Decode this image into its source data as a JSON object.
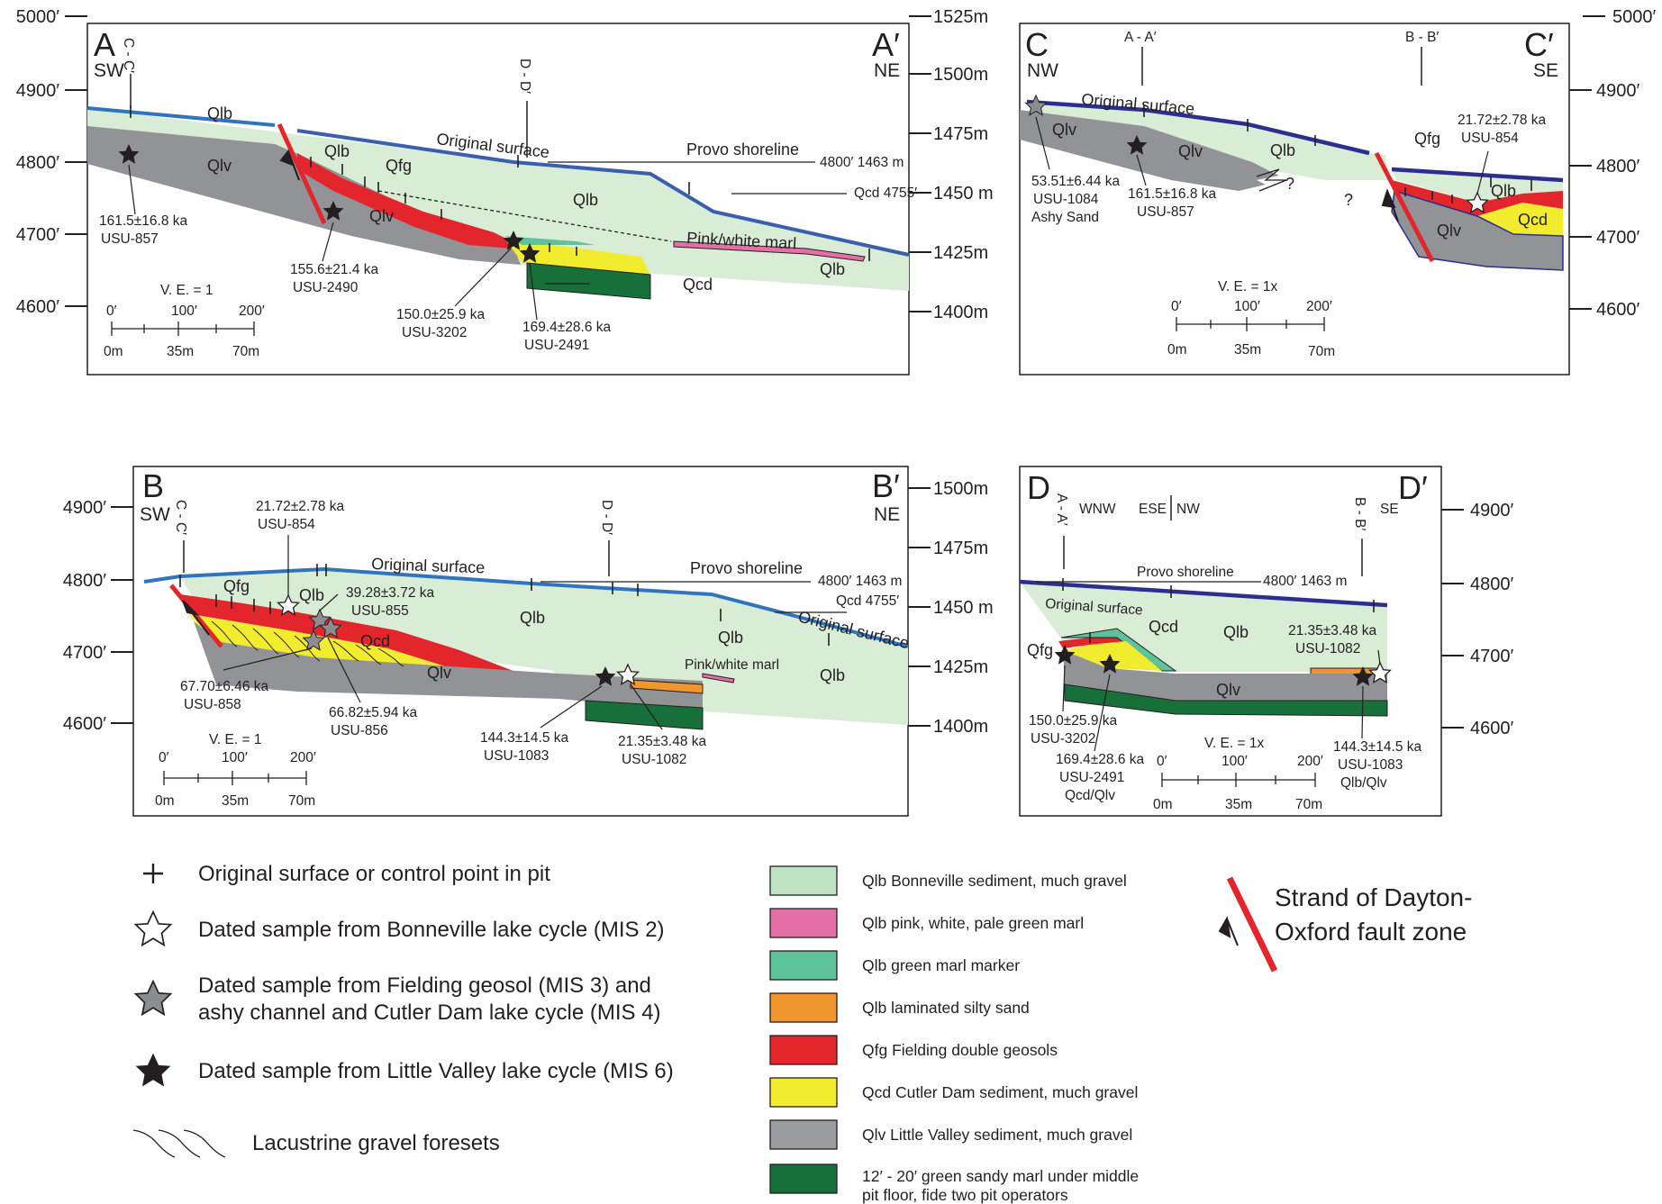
{
  "panel_A": {
    "letter": "A",
    "letter_end": "A′",
    "dir_left": "SW",
    "dir_right": "NE",
    "xref_1": "C - C′",
    "xref_2": "D - D′",
    "units": {
      "qlb_1": "Qlb",
      "qlb_2": "Qlb",
      "qlb_3": "Qlb",
      "qlb_4": "Qlb",
      "qlv_1": "Qlv",
      "qlv_2": "Qlv",
      "qfg": "Qfg",
      "qcd": "Qcd"
    },
    "original_surface": "Original surface",
    "provo_shoreline": "Provo shoreline",
    "ref_4800": "4800′ 1463 m",
    "ref_qcd": "Qcd 4755′",
    "marl": "Pink/white marl",
    "samples": [
      {
        "age": "161.5±16.8 ka",
        "id": "USU-857"
      },
      {
        "age": "155.6±21.4 ka",
        "id": "USU-2490"
      },
      {
        "age": "150.0±25.9 ka",
        "id": "USU-3202"
      },
      {
        "age": "169.4±28.6 ka",
        "id": "USU-2491"
      }
    ],
    "ve": "V. E. = 1",
    "scale_ft": [
      "0′",
      "100′",
      "200′"
    ],
    "scale_m": [
      "0m",
      "35m",
      "70m"
    ],
    "left_ticks": [
      "5000′",
      "4900′",
      "4800′",
      "4700′",
      "4600′"
    ],
    "right_ticks": [
      "1525m",
      "1500m",
      "1475m",
      "1450 m",
      "1425m",
      "1400m"
    ]
  },
  "panel_C": {
    "letter": "C",
    "letter_end": "C′",
    "dir_left": "NW",
    "dir_right": "SE",
    "xref_1": "A - A′",
    "xref_2": "B - B′",
    "units": {
      "qlv_1": "Qlv",
      "qlv_2": "Qlv",
      "qlv_3": "Qlv",
      "qlb_1": "Qlb",
      "qlb_2": "Qlb",
      "qfg": "Qfg",
      "qcd": "Qcd"
    },
    "original_surface": "Original surface",
    "question": "?",
    "samples": [
      {
        "age": "53.51±6.44 ka",
        "id": "USU-1084",
        "note": "Ashy Sand"
      },
      {
        "age": "161.5±16.8 ka",
        "id": "USU-857"
      },
      {
        "age": "21.72±2.78 ka",
        "id": "USU-854"
      }
    ],
    "ve": "V. E. = 1x",
    "scale_ft": [
      "0′",
      "100′",
      "200′"
    ],
    "scale_m": [
      "0m",
      "35m",
      "70m"
    ],
    "right_ticks": [
      "5000′",
      "4900′",
      "4800′",
      "4700′",
      "4600′"
    ]
  },
  "panel_B": {
    "letter": "B",
    "letter_end": "B′",
    "dir_left": "SW",
    "dir_right": "NE",
    "xref_1": "C - C′",
    "xref_2": "D - D′",
    "units": {
      "qfg": "Qfg",
      "qlb_1": "Qlb",
      "qlb_2": "Qlb",
      "qlb_3": "Qlb",
      "qlb_4": "Qlb",
      "qcd": "Qcd",
      "qlv": "Qlv"
    },
    "original_surface": "Original surface",
    "original_surface_2": "Original surface",
    "provo_shoreline": "Provo shoreline",
    "ref_4800": "4800′ 1463 m",
    "ref_qcd": "Qcd 4755′",
    "marl": "Pink/white marl",
    "samples": [
      {
        "age": "21.72±2.78 ka",
        "id": "USU-854"
      },
      {
        "age": "39.28±3.72 ka",
        "id": "USU-855"
      },
      {
        "age": "67.70±6.46 ka",
        "id": "USU-858"
      },
      {
        "age": "66.82±5.94 ka",
        "id": "USU-856"
      },
      {
        "age": "144.3±14.5 ka",
        "id": "USU-1083"
      },
      {
        "age": "21.35±3.48 ka",
        "id": "USU-1082"
      }
    ],
    "ve": "V. E. = 1",
    "scale_ft": [
      "0′",
      "100′",
      "200′"
    ],
    "scale_m": [
      "0m",
      "35m",
      "70m"
    ],
    "left_ticks": [
      "4900′",
      "4800′",
      "4700′",
      "4600′"
    ],
    "right_ticks": [
      "1500m",
      "1475m",
      "1450 m",
      "1425m",
      "1400m"
    ]
  },
  "panel_D": {
    "letter": "D",
    "letter_end": "D′",
    "dir_left": "WNW",
    "dir_mid_1": "ESE",
    "dir_mid_2": "NW",
    "dir_right": "SE",
    "xref_1": "A - A′",
    "xref_2": "B - B′",
    "units": {
      "qfg": "Qfg",
      "qcd": "Qcd",
      "qlb": "Qlb",
      "qlv": "Qlv"
    },
    "original_surface": "Original surface",
    "provo_shoreline": "Provo shoreline",
    "ref_4800": "4800′ 1463 m",
    "samples": [
      {
        "age": "150.0±25.9 ka",
        "id": "USU-3202"
      },
      {
        "age": "169.4±28.6 ka",
        "id": "USU-2491",
        "note": "Qcd/Qlv"
      },
      {
        "age": "21.35±3.48 ka",
        "id": "USU-1082"
      },
      {
        "age": "144.3±14.5 ka",
        "id": "USU-1083",
        "note": "Qlb/Qlv"
      }
    ],
    "ve": "V. E. = 1x",
    "scale_ft": [
      "0′",
      "100′",
      "200′"
    ],
    "scale_m": [
      "0m",
      "35m",
      "70m"
    ],
    "right_ticks": [
      "4900′",
      "4800′",
      "4700′",
      "4600′"
    ]
  },
  "legend_symbols": [
    {
      "icon": "plus-icon",
      "label": "Original surface or control point in pit"
    },
    {
      "icon": "white-star-icon",
      "label": "Dated sample from Bonneville lake cycle (MIS 2)"
    },
    {
      "icon": "gray-star-icon",
      "label_1": "Dated sample from Fielding geosol (MIS 3) and",
      "label_2": "ashy channel and Cutler Dam lake cycle (MIS 4)"
    },
    {
      "icon": "black-star-icon",
      "label": "Dated sample from Little Valley lake cycle (MIS 6)"
    },
    {
      "icon": "foreset-lines-icon",
      "label": "Lacustrine gravel foresets"
    }
  ],
  "legend_units": [
    {
      "color": "#bfe2c0",
      "label": "Qlb  Bonneville sediment, much gravel"
    },
    {
      "color": "#e56fa7",
      "label": "Qlb  pink, white, pale green marl"
    },
    {
      "color": "#5ec29b",
      "label": "Qlb  green marl marker"
    },
    {
      "color": "#f0962e",
      "label": "Qlb  laminated silty sand"
    },
    {
      "color": "#e3262b",
      "label": "Qfg  Fielding double geosols"
    },
    {
      "color": "#f2ec2f",
      "label": "Qcd  Cutler Dam sediment, much gravel"
    },
    {
      "color": "#9a9b9e",
      "label": "Qlv  Little Valley sediment, much gravel"
    },
    {
      "color": "#17703a",
      "label_1": "12′ - 20′ green sandy marl under middle",
      "label_2": "pit floor, fide two pit operators"
    }
  ],
  "fault_legend": {
    "label_1": "Strand of Dayton-",
    "label_2": "Oxford fault zone",
    "color": "#e3262b"
  },
  "colors": {
    "qlb": "#d8ecd6",
    "qlv": "#929396",
    "qfg": "#e3262b",
    "qcd": "#f2ec2f",
    "marl_green": "#17703a",
    "silty_sand": "#f0962e",
    "surface_blue": "#2f74bd",
    "surface_navy": "#2b2f8f"
  }
}
